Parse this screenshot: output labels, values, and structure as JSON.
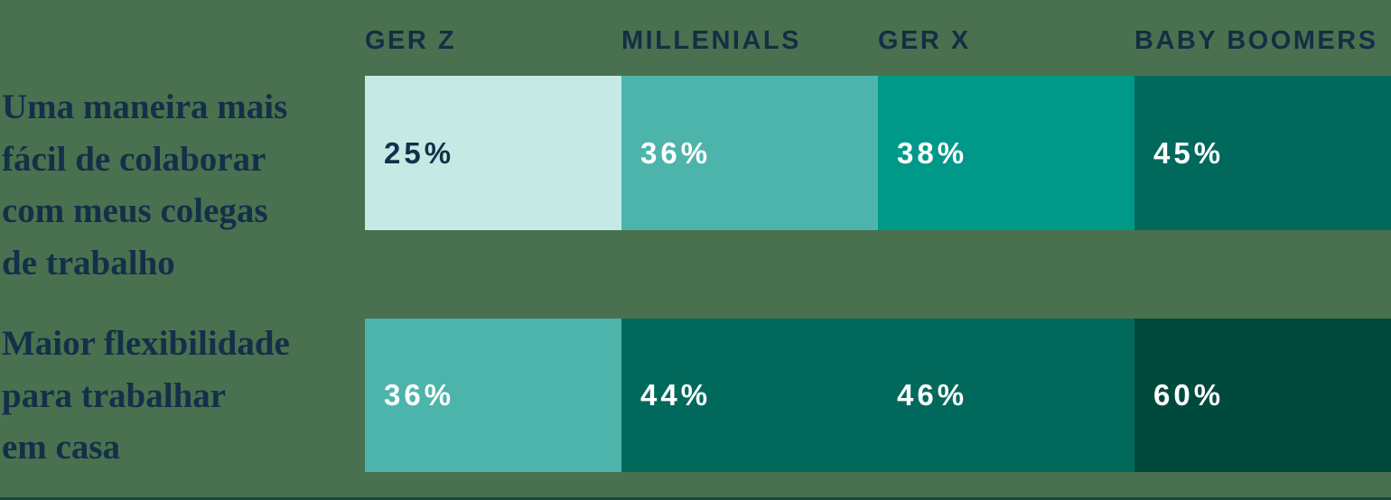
{
  "chart_data": {
    "type": "heatmap",
    "title": "",
    "categories": [
      "GER Z",
      "MILLENIALS",
      "GER X",
      "BABY BOOMERS"
    ],
    "series": [
      {
        "name": "Uma maneira mais fácil de colaborar com meus colegas de trabalho",
        "values": [
          25,
          36,
          38,
          45
        ]
      },
      {
        "name": "Maior flexibilidade para trabalhar em casa",
        "values": [
          36,
          44,
          46,
          60
        ]
      }
    ],
    "value_unit": "%",
    "value_labels_shown": true,
    "legend_position": "none",
    "grid": false,
    "layout": "two horizontal rows of four equal-width cells; cell color darkens as value increases; column headers above first row; row descriptions at left"
  },
  "header": {
    "columns": [
      "GER Z",
      "MILLENIALS",
      "GER X",
      "BABY BOOMERS"
    ]
  },
  "rows": [
    {
      "label": "Uma maneira mais fácil de colaborar com meus colegas de trabalho",
      "label_lines": [
        "Uma maneira mais",
        "fácil de colaborar",
        "com meus colegas",
        "de trabalho"
      ],
      "cells": [
        {
          "value": "25%",
          "bg": "#c5eae5",
          "fg": "#133049"
        },
        {
          "value": "36%",
          "bg": "#4db4ab",
          "fg": "#ffffff"
        },
        {
          "value": "38%",
          "bg": "#009889",
          "fg": "#ffffff"
        },
        {
          "value": "45%",
          "bg": "#00695b",
          "fg": "#ffffff"
        }
      ]
    },
    {
      "label": "Maior flexibilidade para trabalhar em casa",
      "label_lines": [
        "Maior flexibilidade",
        "para trabalhar",
        "em casa"
      ],
      "cells": [
        {
          "value": "36%",
          "bg": "#4db4ab",
          "fg": "#ffffff"
        },
        {
          "value": "44%",
          "bg": "#00695b",
          "fg": "#ffffff"
        },
        {
          "value": "46%",
          "bg": "#00695b",
          "fg": "#ffffff"
        },
        {
          "value": "60%",
          "bg": "#004a3d",
          "fg": "#ffffff"
        }
      ]
    }
  ],
  "colors": {
    "background": "#49714f",
    "heading_text": "#132f44",
    "row_label_text": "#133049",
    "bottom_rule": "#15473d"
  }
}
